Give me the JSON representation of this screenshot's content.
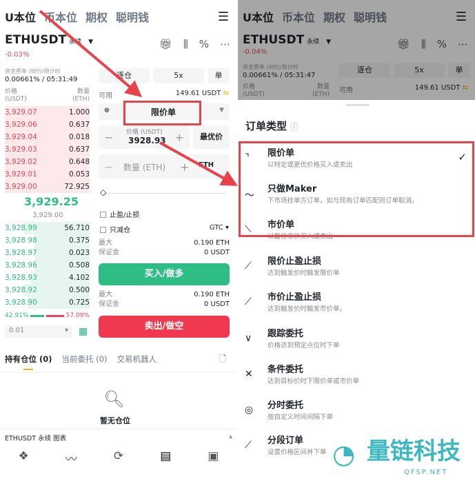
{
  "left": {
    "tabs": [
      "U本位",
      "币本位",
      "期权",
      "聪明钱"
    ],
    "symbol": "ETHUSDT",
    "contract": "永续",
    "change": "-0.03%",
    "funding_label": "资金费率 (8时)/倒计时",
    "funding_value": "0.00661% / 05:31:49",
    "col_price": "价格",
    "col_price_unit": "(USDT)",
    "col_qty": "数量",
    "col_qty_unit": "(ETH)",
    "asks": [
      [
        "3,929.07",
        "1.000"
      ],
      [
        "3,929.06",
        "0.637"
      ],
      [
        "3,929.04",
        "0.018"
      ],
      [
        "3,929.03",
        "0.637"
      ],
      [
        "3,929.02",
        "0.648"
      ],
      [
        "3,929.01",
        "0.053"
      ],
      [
        "3,929.00",
        "72.925"
      ]
    ],
    "last_price": "3,929.25",
    "mark_price": "3,929.00",
    "bids": [
      [
        "3,928.99",
        "56.710"
      ],
      [
        "3,928.98",
        "0.375"
      ],
      [
        "3,928.97",
        "0.023"
      ],
      [
        "3,928.96",
        "0.508"
      ],
      [
        "3,928.93",
        "4.102"
      ],
      [
        "3,928.92",
        "0.500"
      ],
      [
        "3,928.90",
        "0.725"
      ]
    ],
    "buy_ratio": "42.91%",
    "sell_ratio": "57.09%",
    "precision": "0.01",
    "margin_mode": "逐仓",
    "leverage": "5x",
    "position_mode": "单",
    "available_label": "可用",
    "available_value": "149.61 USDT",
    "order_type": "限价单",
    "price_label": "价格 (USDT)",
    "price_value": "3928.93",
    "best_price": "最优价",
    "qty_placeholder": "数量 (ETH)",
    "qty_unit": "ETH",
    "tp_sl": "止盈/止损",
    "reduce_only": "只减仓",
    "tif": "GTC",
    "max_label": "最大",
    "margin_label": "保证金",
    "buy_max": "0.190 ETH",
    "buy_margin": "0 USDT",
    "buy_button": "买入/做多",
    "sell_max": "0.190 ETH",
    "sell_margin": "0 USDT",
    "sell_button": "卖出/做空",
    "position_tabs": [
      "持有仓位 (0)",
      "当前委托 (0)",
      "交易机器人"
    ],
    "empty_text": "暂无仓位",
    "chart_bar": "ETHUSDT 永续  图表"
  },
  "right": {
    "tabs": [
      "U本位",
      "币本位",
      "期权",
      "聪明钱"
    ],
    "symbol": "ETHUSDT",
    "contract": "永续",
    "change": "-0.04%",
    "funding_label": "资金费率 (8时)/倒计时",
    "funding_value": "0.00661% / 05:31:47",
    "margin_mode": "逐仓",
    "leverage": "5x",
    "position_mode": "单",
    "col_price": "价格",
    "col_price_unit": "(USDT)",
    "col_qty": "数量",
    "col_qty_unit": "(ETH)",
    "available_label": "可用",
    "available_value": "149.61 USDT",
    "sheet_title": "订单类型",
    "order_types": [
      {
        "title": "限价单",
        "desc": "以特定或更优价格买入或卖出",
        "selected": true
      },
      {
        "title": "只做Maker",
        "desc": "下市场挂单方订单，如与现有订单匹配则订单取消。"
      },
      {
        "title": "市价单",
        "desc": "以最佳市价买入或卖出"
      },
      {
        "title": "限价止盈止损",
        "desc": "达到触发价时触发限价单"
      },
      {
        "title": "市价止盈止损",
        "desc": "达到触发价时触发市价单。"
      },
      {
        "title": "跟踪委托",
        "desc": "价格达到预定点位时下单"
      },
      {
        "title": "条件委托",
        "desc": "达到目标价时下限价单或市价单"
      },
      {
        "title": "分时委托",
        "desc": "按自定义时间间隔下单"
      },
      {
        "title": "分段订单",
        "desc": "设置价格区间并下单"
      }
    ]
  },
  "watermark": {
    "name": "量链科技",
    "site": "QFSP.NET"
  },
  "colors": {
    "buy": "#2ebd85",
    "sell": "#f0394f",
    "highlight": "#e8424a",
    "accent": "#f0b90b"
  }
}
